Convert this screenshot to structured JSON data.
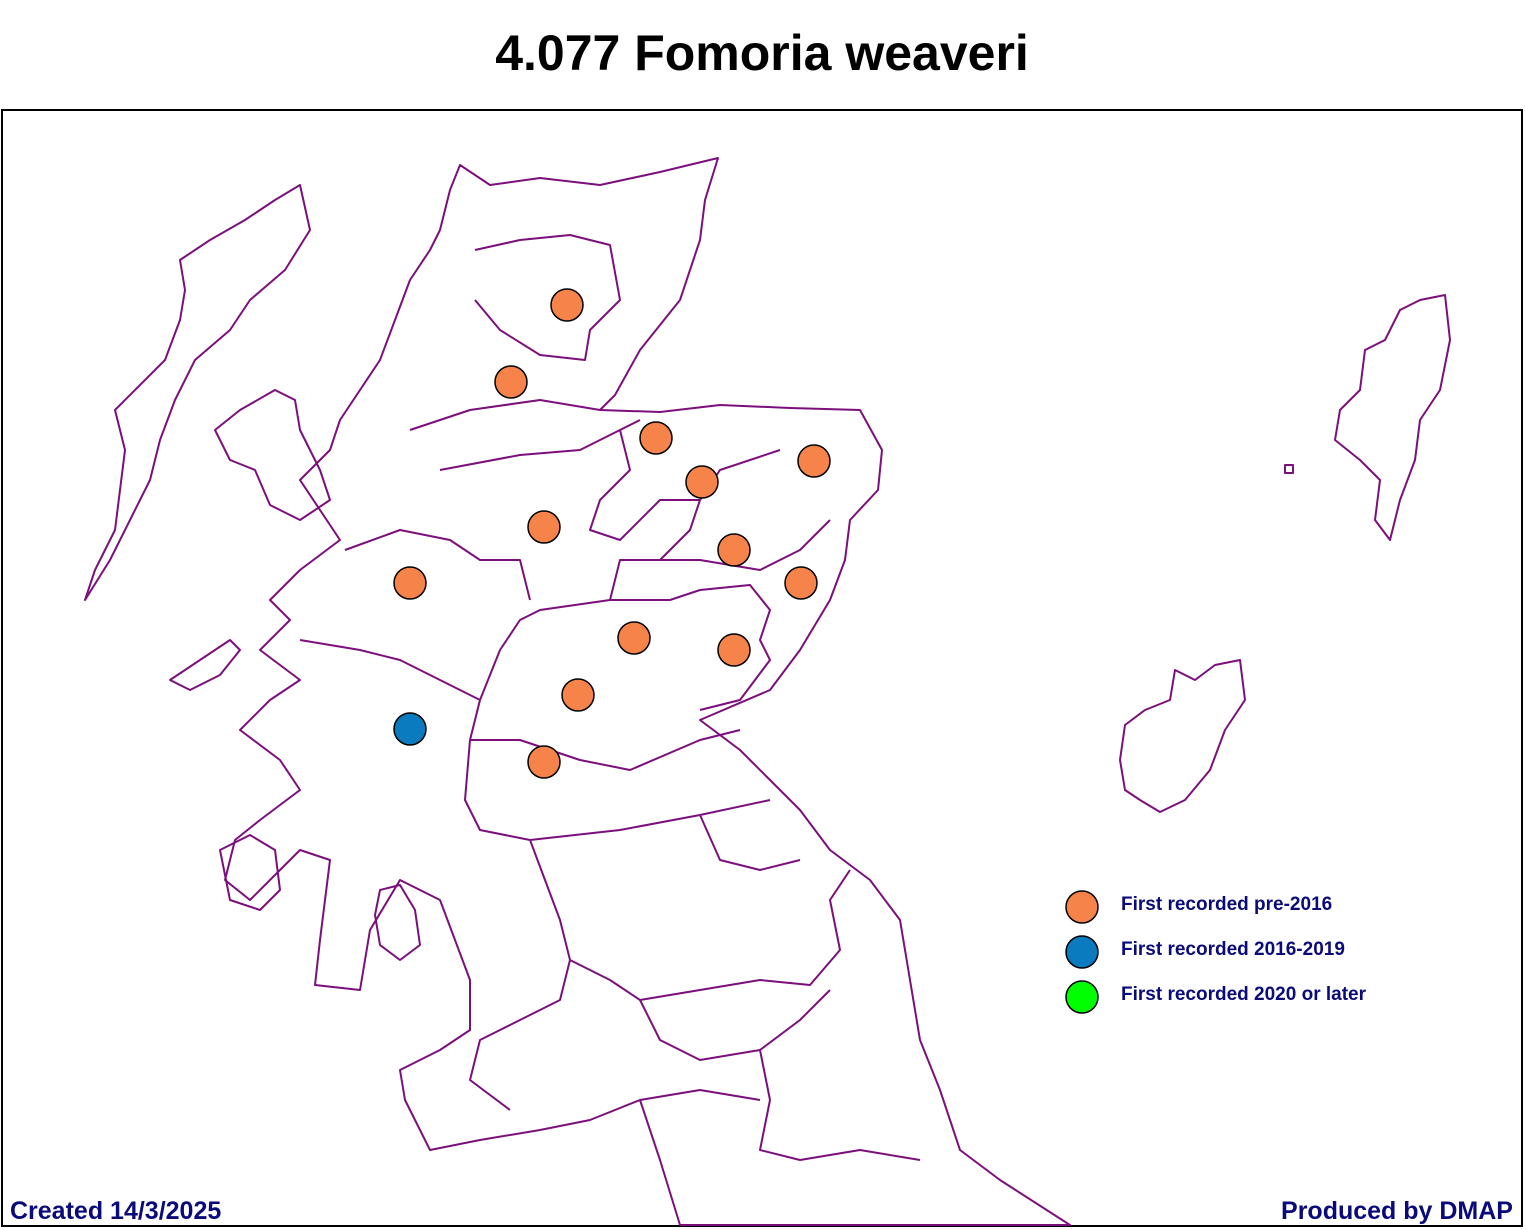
{
  "title": "4.077 Fomoria weaveri",
  "legend": [
    {
      "label": "First recorded pre-2016",
      "color": "#f6844a"
    },
    {
      "label": "First recorded 2016-2019",
      "color": "#0b7bbf"
    },
    {
      "label": "First recorded 2020 or later",
      "color": "#00ff00"
    }
  ],
  "footer": {
    "left": "Created 14/3/2025",
    "right": "Produced by DMAP"
  }
}
